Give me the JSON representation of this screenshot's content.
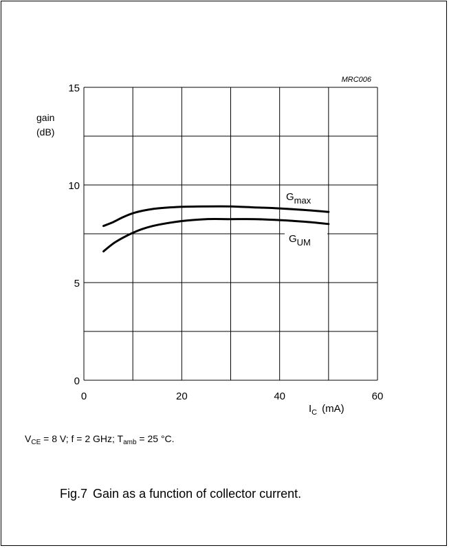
{
  "chart_data": {
    "type": "line",
    "code": "MRC006",
    "ylabel_line1": "gain",
    "ylabel_line2": "(dB)",
    "xlabel_main": "I",
    "xlabel_sub": "C",
    "xlabel_unit": "(mA)",
    "xlim": [
      0,
      60
    ],
    "ylim": [
      0,
      15
    ],
    "xticks": [
      0,
      20,
      40,
      60
    ],
    "yticks": [
      0,
      5,
      10,
      15
    ],
    "xgrid": [
      0,
      10,
      20,
      30,
      40,
      50,
      60
    ],
    "ygrid": [
      0,
      2.5,
      5,
      7.5,
      10,
      12.5,
      15
    ],
    "grid": true,
    "series": [
      {
        "name": "G",
        "name_sub": "max",
        "x": [
          4,
          6,
          8,
          10,
          12,
          15,
          20,
          25,
          30,
          35,
          40,
          45,
          50
        ],
        "y": [
          7.9,
          8.1,
          8.35,
          8.55,
          8.68,
          8.8,
          8.88,
          8.9,
          8.9,
          8.85,
          8.8,
          8.72,
          8.62
        ]
      },
      {
        "name": "G",
        "name_sub": "UM",
        "x": [
          4,
          6,
          8,
          10,
          12,
          15,
          20,
          25,
          30,
          35,
          40,
          45,
          50
        ],
        "y": [
          6.6,
          7.0,
          7.3,
          7.55,
          7.75,
          7.95,
          8.15,
          8.25,
          8.25,
          8.25,
          8.2,
          8.12,
          8.0
        ]
      }
    ]
  },
  "conditions": {
    "v": "V",
    "v_sub": "CE",
    "part1": " = 8 V; f = 2 GHz; T",
    "t_sub": "amb",
    "part2": " = 25 °C."
  },
  "caption": {
    "number": "Fig.7",
    "text": "Gain as a function of collector current."
  }
}
